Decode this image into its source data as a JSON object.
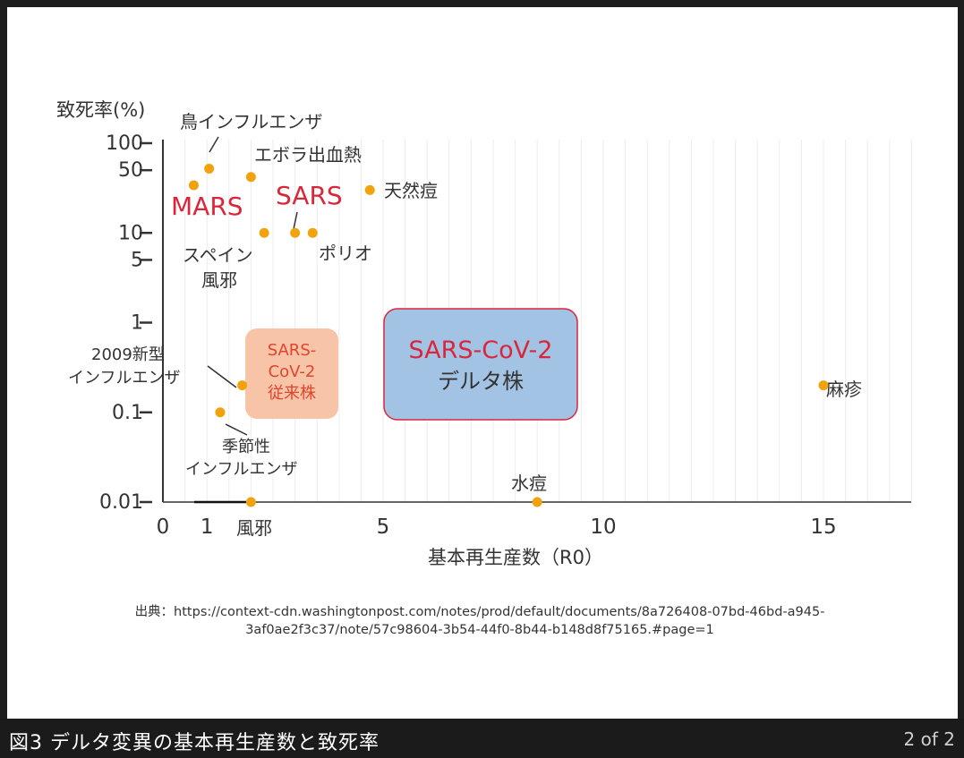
{
  "lightbox": {
    "caption": "図3 デルタ変異の基本再生産数と致死率",
    "counter": "2 of 2"
  },
  "chart_data": {
    "type": "scatter",
    "title": "",
    "xlabel": "基本再生産数（R0）",
    "ylabel": "致死率(%)",
    "y_scale": "log",
    "xlim": [
      0,
      17
    ],
    "ylim": [
      0.01,
      100
    ],
    "x_ticks": [
      "0",
      "1",
      "5",
      "10",
      "15"
    ],
    "y_ticks": [
      "100",
      "50",
      "10",
      "5",
      "1",
      "0.1",
      "0.01"
    ],
    "grid": "light vertical",
    "point_color": "#f2a20d",
    "points": [
      {
        "name": "鳥インフルエンザ",
        "x": 1.05,
        "y": 52
      },
      {
        "name": "エボラ出血熱",
        "x": 2.0,
        "y": 42
      },
      {
        "name": "MARS",
        "x": 0.7,
        "y": 34
      },
      {
        "name": "天然痘",
        "x": 4.7,
        "y": 30
      },
      {
        "name": "スペイン風邪",
        "x": 2.3,
        "y": 10
      },
      {
        "name": "SARS",
        "x": 3.0,
        "y": 10
      },
      {
        "name": "ポリオ",
        "x": 3.4,
        "y": 10
      },
      {
        "name": "2009新型インフルエンザ",
        "x": 1.8,
        "y": 0.2
      },
      {
        "name": "季節性インフルエンザ",
        "x": 1.3,
        "y": 0.1
      },
      {
        "name": "風邪",
        "x": 2.0,
        "y": 0.01
      },
      {
        "name": "水痘",
        "x": 8.5,
        "y": 0.01
      },
      {
        "name": "麻疹",
        "x": 15.0,
        "y": 0.2
      }
    ],
    "labels": {
      "bird_flu": "鳥インフルエンザ",
      "ebola": "エボラ出血熱",
      "mars": "MARS",
      "sars": "SARS",
      "smallpox": "天然痘",
      "spanish_flu_1": "スペイン",
      "spanish_flu_2": "風邪",
      "polio": "ポリオ",
      "flu2009_1": "2009新型",
      "flu2009_2": "インフルエンザ",
      "seasonal_1": "季節性",
      "seasonal_2": "インフルエンザ",
      "cold": "風邪",
      "chickenpox": "水痘",
      "measles": "麻疹"
    },
    "highlight_colors": {
      "red_label": "#d9263a"
    },
    "boxes": [
      {
        "id": "original",
        "lines": [
          "SARS-",
          "CoV-2",
          "従来株"
        ],
        "fill": "#f7c4a8",
        "text_color": "#e0452f"
      },
      {
        "id": "delta",
        "lines": [
          "SARS-CoV-2",
          "デルタ株"
        ],
        "fill": "#a3c3e4",
        "stroke": "#d9263a",
        "line_colors": [
          "#d9263a",
          "#333333"
        ]
      }
    ],
    "source": {
      "line1": "出典：https://context-cdn.washingtonpost.com/notes/prod/default/documents/8a726408-07bd-46bd-a945-",
      "line2": "3af0ae2f3c37/note/57c98604-3b54-44f0-8b44-b148d8f75165.#page=1"
    }
  }
}
